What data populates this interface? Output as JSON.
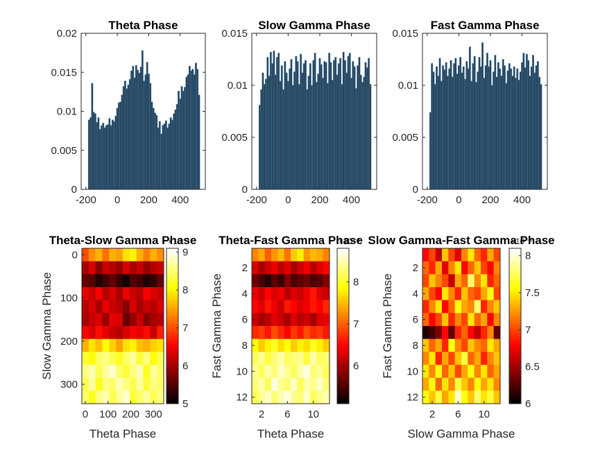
{
  "colors": {
    "bar_fill": "#1f3a4f",
    "bar_edge": "#4c7ea7",
    "axis": "#262626",
    "colormap": "hot"
  },
  "chart_data": [
    {
      "type": "bar",
      "title": "Theta Phase",
      "xlabel": "",
      "ylabel": "",
      "xlim": [
        -230,
        560
      ],
      "ylim": [
        0,
        0.02
      ],
      "xticks": [
        -200,
        0,
        200,
        400
      ],
      "xtick_labels": [
        "-200",
        "0",
        "200",
        "400"
      ],
      "yticks": [
        0,
        0.005,
        0.01,
        0.015,
        0.02
      ],
      "ytick_labels": [
        "0",
        "0.005",
        "0.01",
        "0.015",
        "0.02"
      ],
      "bin_start": -180,
      "bin_width": 10,
      "values": [
        0.0089,
        0.0092,
        0.0136,
        0.0099,
        0.0097,
        0.0086,
        0.0092,
        0.0077,
        0.0082,
        0.0085,
        0.0079,
        0.0082,
        0.0083,
        0.0091,
        0.0082,
        0.0089,
        0.0087,
        0.0094,
        0.0104,
        0.0111,
        0.0112,
        0.0121,
        0.0132,
        0.0139,
        0.0129,
        0.0134,
        0.0141,
        0.0152,
        0.0158,
        0.0143,
        0.0159,
        0.0153,
        0.0149,
        0.0157,
        0.0178,
        0.0139,
        0.0147,
        0.0163,
        0.0148,
        0.0136,
        0.0112,
        0.0104,
        0.0098,
        0.0095,
        0.0079,
        0.0087,
        0.0071,
        0.0082,
        0.0084,
        0.0088,
        0.0079,
        0.0084,
        0.0092,
        0.0089,
        0.0097,
        0.0102,
        0.0109,
        0.0126,
        0.0116,
        0.0132,
        0.0126,
        0.0131,
        0.0144,
        0.0147,
        0.0158,
        0.0152,
        0.0154,
        0.0147,
        0.0162,
        0.0154,
        0.0121
      ]
    },
    {
      "type": "bar",
      "title": "Slow Gamma Phase",
      "xlabel": "",
      "ylabel": "",
      "xlim": [
        -230,
        560
      ],
      "ylim": [
        0,
        0.015
      ],
      "xticks": [
        -200,
        0,
        200,
        400
      ],
      "xtick_labels": [
        "-200",
        "0",
        "200",
        "400"
      ],
      "yticks": [
        0,
        0.005,
        0.01,
        0.015
      ],
      "ytick_labels": [
        "0",
        "0.005",
        "0.01",
        "0.015"
      ],
      "bin_start": -180,
      "bin_width": 10,
      "values": [
        0.0081,
        0.0096,
        0.0112,
        0.0101,
        0.0106,
        0.0127,
        0.0109,
        0.0132,
        0.0121,
        0.0133,
        0.011,
        0.0127,
        0.0131,
        0.0104,
        0.0119,
        0.0096,
        0.0123,
        0.0112,
        0.0104,
        0.0116,
        0.0125,
        0.01,
        0.0113,
        0.0128,
        0.0123,
        0.0101,
        0.013,
        0.0112,
        0.0121,
        0.0124,
        0.0096,
        0.0109,
        0.0121,
        0.01,
        0.0124,
        0.0131,
        0.0103,
        0.0111,
        0.0126,
        0.012,
        0.0107,
        0.0123,
        0.0122,
        0.0102,
        0.0131,
        0.0122,
        0.0105,
        0.0124,
        0.0127,
        0.011,
        0.0121,
        0.0126,
        0.0101,
        0.0132,
        0.0124,
        0.0112,
        0.0128,
        0.0131,
        0.0107,
        0.0123,
        0.0118,
        0.0097,
        0.0119,
        0.0127,
        0.011,
        0.0103,
        0.0108,
        0.0122,
        0.0117,
        0.0126,
        0.0101
      ]
    },
    {
      "type": "bar",
      "title": "Fast Gamma Phase",
      "xlabel": "",
      "ylabel": "",
      "xlim": [
        -230,
        560
      ],
      "ylim": [
        0,
        0.015
      ],
      "xticks": [
        -200,
        0,
        200,
        400
      ],
      "xtick_labels": [
        "-200",
        "0",
        "200",
        "400"
      ],
      "yticks": [
        0,
        0.005,
        0.01,
        0.015
      ],
      "ytick_labels": [
        "0",
        "0.005",
        "0.01",
        "0.015"
      ],
      "bin_start": -180,
      "bin_width": 10,
      "values": [
        0.0074,
        0.0121,
        0.0113,
        0.0101,
        0.0118,
        0.0109,
        0.0126,
        0.0104,
        0.0119,
        0.0115,
        0.0122,
        0.0109,
        0.0116,
        0.0124,
        0.0108,
        0.0121,
        0.0126,
        0.0111,
        0.0119,
        0.0127,
        0.0112,
        0.0118,
        0.0106,
        0.0123,
        0.0116,
        0.0137,
        0.0104,
        0.0121,
        0.0128,
        0.0103,
        0.0113,
        0.0127,
        0.0118,
        0.0141,
        0.0107,
        0.0119,
        0.0131,
        0.0118,
        0.0124,
        0.01,
        0.0113,
        0.0129,
        0.0108,
        0.0122,
        0.0116,
        0.0109,
        0.0125,
        0.0119,
        0.0102,
        0.0114,
        0.0121,
        0.0116,
        0.0109,
        0.0118,
        0.0107,
        0.0116,
        0.0105,
        0.0113,
        0.0122,
        0.0131,
        0.0117,
        0.013,
        0.0124,
        0.0109,
        0.0118,
        0.0129,
        0.0112,
        0.0119,
        0.0123,
        0.0108,
        0.0101
      ]
    },
    {
      "type": "heatmap",
      "title": "Theta-Slow Gamma Phase",
      "xlabel": "Theta Phase",
      "ylabel": "Slow Gamma Phase",
      "xlim": [
        -15,
        345
      ],
      "ylim": [
        -15,
        345
      ],
      "xticks": [
        0,
        100,
        200,
        300
      ],
      "xtick_labels": [
        "0",
        "100",
        "200",
        "300"
      ],
      "yticks": [
        0,
        100,
        200,
        300
      ],
      "ytick_labels": [
        "0",
        "100",
        "200",
        "300"
      ],
      "clim": [
        5,
        9.1
      ],
      "cticks": [
        5,
        6,
        7,
        8,
        9
      ],
      "ctick_labels": [
        "5",
        "6",
        "7",
        "8",
        "9"
      ],
      "colorbar_exponent": "×10⁻³",
      "rows": 12,
      "cols": 12,
      "matrix": [
        [
          7.0,
          7.4,
          7.6,
          7.2,
          7.6,
          7.5,
          7.9,
          8.0,
          7.6,
          7.3,
          7.6,
          7.4
        ],
        [
          6.0,
          6.3,
          5.8,
          6.2,
          6.1,
          5.9,
          6.3,
          6.0,
          6.2,
          5.9,
          6.1,
          6.2
        ],
        [
          5.6,
          5.5,
          5.2,
          5.4,
          5.6,
          5.3,
          5.1,
          5.5,
          5.4,
          5.2,
          5.3,
          5.6
        ],
        [
          6.4,
          6.2,
          6.5,
          6.1,
          6.3,
          6.0,
          6.4,
          6.2,
          6.1,
          6.5,
          6.3,
          6.2
        ],
        [
          6.1,
          6.3,
          6.0,
          6.4,
          6.2,
          6.1,
          5.8,
          6.3,
          6.0,
          6.2,
          6.1,
          6.3
        ],
        [
          6.0,
          6.2,
          6.3,
          5.9,
          6.4,
          6.3,
          5.6,
          5.9,
          6.2,
          5.8,
          6.0,
          6.1
        ],
        [
          6.5,
          6.3,
          6.6,
          6.4,
          6.2,
          6.1,
          6.3,
          6.5,
          6.4,
          6.6,
          6.2,
          6.7
        ],
        [
          7.6,
          7.9,
          7.7,
          8.1,
          7.8,
          7.5,
          7.9,
          8.0,
          7.7,
          7.6,
          7.8,
          7.9
        ],
        [
          8.3,
          8.1,
          8.5,
          8.6,
          8.4,
          8.2,
          8.5,
          8.7,
          8.3,
          8.6,
          8.1,
          8.4
        ],
        [
          8.6,
          8.8,
          8.4,
          8.7,
          8.9,
          8.5,
          8.3,
          8.6,
          8.8,
          8.2,
          8.7,
          8.5
        ],
        [
          8.4,
          8.7,
          8.2,
          8.6,
          8.5,
          8.8,
          8.6,
          8.4,
          8.7,
          8.3,
          8.6,
          8.5
        ],
        [
          8.5,
          8.2,
          8.6,
          8.8,
          8.4,
          8.7,
          8.9,
          8.3,
          8.5,
          8.7,
          8.4,
          8.6
        ]
      ]
    },
    {
      "type": "heatmap",
      "title": "Theta-Fast Gamma Phase",
      "xlabel": "Theta Phase",
      "ylabel": "Fast Gamma Phase",
      "xlim": [
        0.5,
        12.5
      ],
      "ylim": [
        0.5,
        12.5
      ],
      "xticks": [
        2,
        6,
        10
      ],
      "xtick_labels": [
        "2",
        "6",
        "10"
      ],
      "yticks": [
        2,
        4,
        6,
        8,
        10,
        12
      ],
      "ytick_labels": [
        "2",
        "4",
        "6",
        "8",
        "10",
        "12"
      ],
      "clim": [
        5.1,
        8.8
      ],
      "cticks": [
        6,
        7,
        8
      ],
      "ctick_labels": [
        "6",
        "7",
        "8"
      ],
      "colorbar_exponent": "×10⁻³",
      "rows": 12,
      "cols": 12,
      "matrix": [
        [
          7.2,
          7.4,
          7.0,
          7.3,
          7.5,
          7.1,
          7.6,
          7.8,
          7.3,
          7.5,
          7.4,
          7.2
        ],
        [
          6.3,
          6.0,
          6.2,
          6.4,
          6.1,
          6.3,
          6.0,
          6.2,
          6.4,
          6.1,
          6.3,
          6.5
        ],
        [
          5.7,
          5.5,
          5.3,
          5.6,
          5.4,
          5.8,
          5.5,
          5.6,
          5.7,
          5.5,
          5.6,
          5.8
        ],
        [
          6.4,
          6.2,
          6.5,
          6.3,
          6.4,
          6.1,
          6.3,
          6.2,
          6.4,
          6.6,
          6.3,
          6.2
        ],
        [
          6.5,
          6.3,
          6.6,
          6.4,
          6.2,
          6.6,
          6.5,
          6.3,
          6.4,
          6.6,
          6.5,
          6.7
        ],
        [
          6.2,
          6.0,
          6.1,
          6.3,
          6.2,
          6.0,
          6.3,
          6.1,
          6.2,
          6.0,
          6.3,
          6.4
        ],
        [
          6.7,
          6.8,
          6.6,
          6.9,
          6.7,
          6.5,
          6.8,
          6.6,
          6.9,
          6.7,
          6.8,
          6.6
        ],
        [
          7.9,
          7.6,
          7.8,
          8.0,
          7.7,
          7.9,
          7.6,
          7.8,
          7.7,
          8.0,
          7.8,
          7.6
        ],
        [
          8.2,
          8.4,
          8.1,
          8.3,
          8.5,
          8.2,
          8.3,
          8.4,
          8.1,
          8.5,
          8.2,
          8.3
        ],
        [
          8.4,
          8.2,
          8.5,
          8.3,
          8.6,
          8.4,
          8.2,
          8.5,
          8.7,
          8.3,
          8.4,
          8.2
        ],
        [
          8.3,
          8.5,
          8.2,
          8.7,
          8.4,
          8.3,
          8.6,
          8.2,
          8.5,
          8.4,
          8.6,
          8.3
        ],
        [
          8.2,
          8.4,
          8.6,
          8.3,
          8.5,
          8.7,
          8.4,
          8.3,
          8.6,
          8.2,
          8.4,
          8.5
        ]
      ]
    },
    {
      "type": "heatmap",
      "title": "Slow Gamma-Fast Gamma Phase",
      "xlabel": "Slow Gamma Phase",
      "ylabel": "Fast Gamma Phase",
      "xlim": [
        0.5,
        12.5
      ],
      "ylim": [
        0.5,
        12.5
      ],
      "xticks": [
        2,
        6,
        10
      ],
      "xtick_labels": [
        "2",
        "6",
        "10"
      ],
      "yticks": [
        2,
        4,
        6,
        8,
        10,
        12
      ],
      "ytick_labels": [
        "2",
        "4",
        "6",
        "8",
        "10",
        "12"
      ],
      "clim": [
        6.0,
        8.1
      ],
      "cticks": [
        6,
        6.5,
        7,
        7.5,
        8
      ],
      "ctick_labels": [
        "6",
        "6.5",
        "7",
        "7.5",
        "8"
      ],
      "colorbar_exponent": "×10⁻³",
      "rows": 12,
      "cols": 12,
      "matrix": [
        [
          6.8,
          7.0,
          6.6,
          7.4,
          7.0,
          6.7,
          7.2,
          7.5,
          7.1,
          6.9,
          7.3,
          7.0
        ],
        [
          7.1,
          6.9,
          7.3,
          6.7,
          7.2,
          7.5,
          6.8,
          7.1,
          7.4,
          7.0,
          6.8,
          7.2
        ],
        [
          7.0,
          7.4,
          7.2,
          7.0,
          6.6,
          7.3,
          7.1,
          7.8,
          7.2,
          7.5,
          6.9,
          7.1
        ],
        [
          7.3,
          7.0,
          6.8,
          7.5,
          7.2,
          6.9,
          7.4,
          7.1,
          7.0,
          7.3,
          7.6,
          7.0
        ],
        [
          6.9,
          7.2,
          7.5,
          6.8,
          7.1,
          7.6,
          7.3,
          7.2,
          7.8,
          6.9,
          7.2,
          7.4
        ],
        [
          7.1,
          6.8,
          7.0,
          7.4,
          6.9,
          7.2,
          7.0,
          7.5,
          7.1,
          7.3,
          6.8,
          7.2
        ],
        [
          6.1,
          6.2,
          6.4,
          6.8,
          6.3,
          6.9,
          7.1,
          6.8,
          6.6,
          6.9,
          7.2,
          6.3
        ],
        [
          7.4,
          7.1,
          7.3,
          6.9,
          7.6,
          7.2,
          7.0,
          7.4,
          7.2,
          7.1,
          7.5,
          7.3
        ],
        [
          7.2,
          7.5,
          6.9,
          7.3,
          7.0,
          7.4,
          7.7,
          7.1,
          7.3,
          6.9,
          7.2,
          7.4
        ],
        [
          7.5,
          7.2,
          7.6,
          7.1,
          7.4,
          7.0,
          7.3,
          7.6,
          7.2,
          7.5,
          7.1,
          7.3
        ],
        [
          7.3,
          7.6,
          7.1,
          7.5,
          7.2,
          7.7,
          7.4,
          7.2,
          7.6,
          7.3,
          7.5,
          7.2
        ],
        [
          7.6,
          7.4,
          7.7,
          7.3,
          7.5,
          8.0,
          7.6,
          7.4,
          7.8,
          7.5,
          7.7,
          7.4
        ]
      ]
    }
  ]
}
